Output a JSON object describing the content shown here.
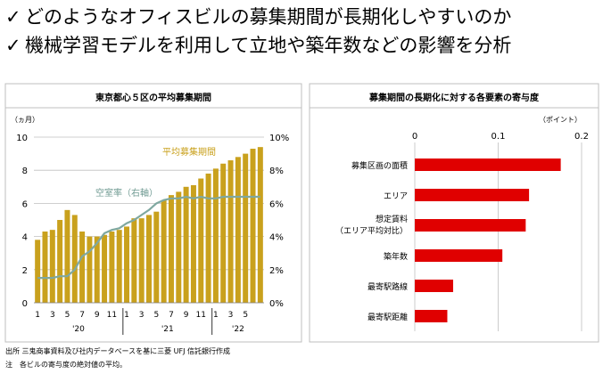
{
  "bullets": [
    {
      "mark": "✓",
      "text": "どのようなオフィスビルの募集期間が長期化しやすいのか"
    },
    {
      "mark": "✓",
      "text": "機械学習モデルを利用して立地や築年数などの影響を分析"
    }
  ],
  "footnotes": [
    "出所 三鬼商事資料及び社内データベースを基に三菱 UFJ 信託銀行作成",
    "注　各ビルの寄与度の絶対値の平均。"
  ],
  "colors": {
    "bar": "#c9a11d",
    "line": "#7fa8a0",
    "red": "#e00000",
    "grid": "#bfbfbf"
  },
  "chart_data": [
    {
      "type": "bar+line",
      "title": "東京都心５区の平均募集期間",
      "ylabel_left": "（ヵ月）",
      "ylim_left": [
        0,
        10
      ],
      "ylim_right": [
        0,
        10
      ],
      "yticks_left": [
        "0",
        "2",
        "4",
        "6",
        "8",
        "10"
      ],
      "yticks_right": [
        "0%",
        "2%",
        "4%",
        "6%",
        "8%",
        "10%"
      ],
      "month_ticks": [
        "1",
        "3",
        "5",
        "7",
        "9",
        "11",
        "1",
        "3",
        "5",
        "7",
        "9",
        "11",
        "1",
        "3",
        "5"
      ],
      "year_labels": [
        "'20",
        "'21",
        "'22"
      ],
      "series": [
        {
          "name": "平均募集期間",
          "kind": "bar",
          "axis": "left",
          "values": [
            3.8,
            4.3,
            4.4,
            5.0,
            5.6,
            5.3,
            4.3,
            4.0,
            4.0,
            4.1,
            4.3,
            4.4,
            4.6,
            5.1,
            5.1,
            5.3,
            5.5,
            6.2,
            6.5,
            6.7,
            7.0,
            7.1,
            7.5,
            7.8,
            8.1,
            8.4,
            8.6,
            8.8,
            9.0,
            9.3,
            9.4
          ]
        },
        {
          "name": "空室率（右軸）",
          "kind": "line",
          "axis": "right",
          "values": [
            1.5,
            1.5,
            1.5,
            1.6,
            1.6,
            2.0,
            2.8,
            3.1,
            3.6,
            4.2,
            4.4,
            4.5,
            4.8,
            5.0,
            5.3,
            5.6,
            6.0,
            6.2,
            6.3,
            6.3,
            6.4,
            6.3,
            6.4,
            6.3,
            6.3,
            6.4,
            6.4,
            6.4,
            6.4,
            6.4,
            6.4
          ]
        }
      ]
    },
    {
      "type": "bar",
      "orientation": "horizontal",
      "title": "募集期間の長期化に対する各要素の寄与度",
      "unit_label": "（ポイント）",
      "xlim": [
        0,
        0.2
      ],
      "xticks": [
        "0",
        "0.1",
        "0.2"
      ],
      "categories": [
        "募集区画の面積",
        "エリア",
        "想定賃料\n（エリア平均対比）",
        "築年数",
        "最寄駅路線",
        "最寄駅距離"
      ],
      "values": [
        0.175,
        0.137,
        0.133,
        0.105,
        0.046,
        0.039
      ]
    }
  ]
}
